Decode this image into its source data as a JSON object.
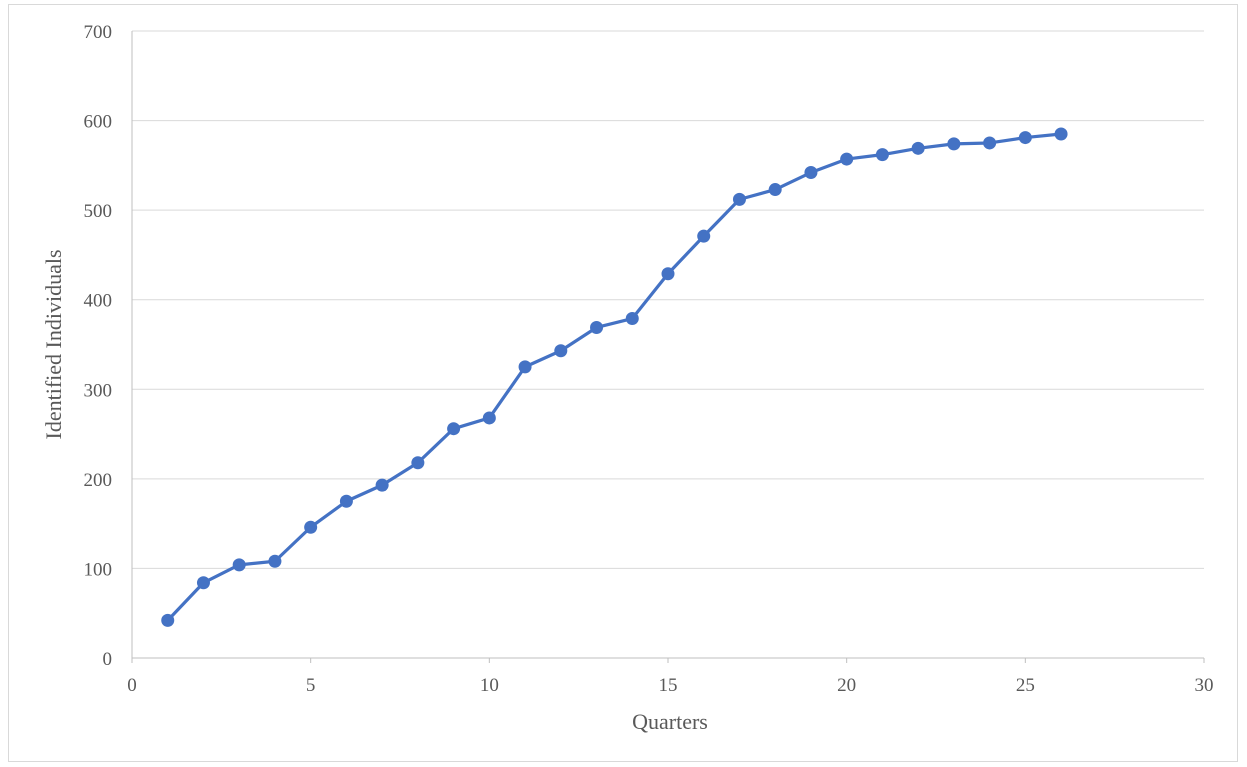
{
  "chart_data": {
    "type": "scatter",
    "title": "",
    "xlabel": "Quarters",
    "ylabel": "Identified Individuals",
    "xlim": [
      0,
      30
    ],
    "ylim": [
      0,
      700
    ],
    "x_ticks": [
      0,
      5,
      10,
      15,
      20,
      25,
      30
    ],
    "y_ticks": [
      0,
      100,
      200,
      300,
      400,
      500,
      600,
      700
    ],
    "grid": "horizontal",
    "legend": "none",
    "series_color": "#4472c4",
    "markers": true,
    "lines": true,
    "series": [
      {
        "x": [
          1,
          2,
          3,
          4,
          5,
          6,
          7,
          8,
          9,
          10,
          11,
          12,
          13,
          14,
          15,
          16,
          17,
          18,
          19,
          20,
          21,
          22,
          23,
          24,
          25,
          26
        ],
        "y": [
          42,
          84,
          104,
          108,
          146,
          175,
          193,
          218,
          256,
          268,
          325,
          343,
          369,
          379,
          429,
          471,
          512,
          523,
          542,
          557,
          562,
          569,
          574,
          575,
          581,
          585
        ]
      }
    ]
  }
}
